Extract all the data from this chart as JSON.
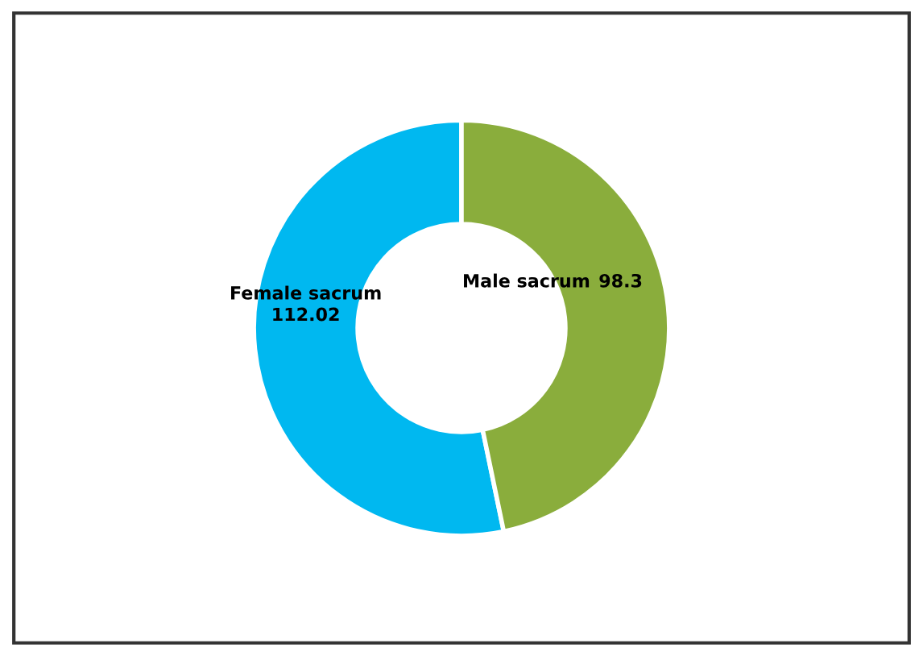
{
  "chart_data": {
    "type": "donut",
    "categories": [
      "Female sacrum",
      "Male sacrum"
    ],
    "values": [
      112.02,
      98.3
    ],
    "colors": [
      "#00b8f0",
      "#8aad3c"
    ],
    "data_labels": true,
    "legend": false
  }
}
